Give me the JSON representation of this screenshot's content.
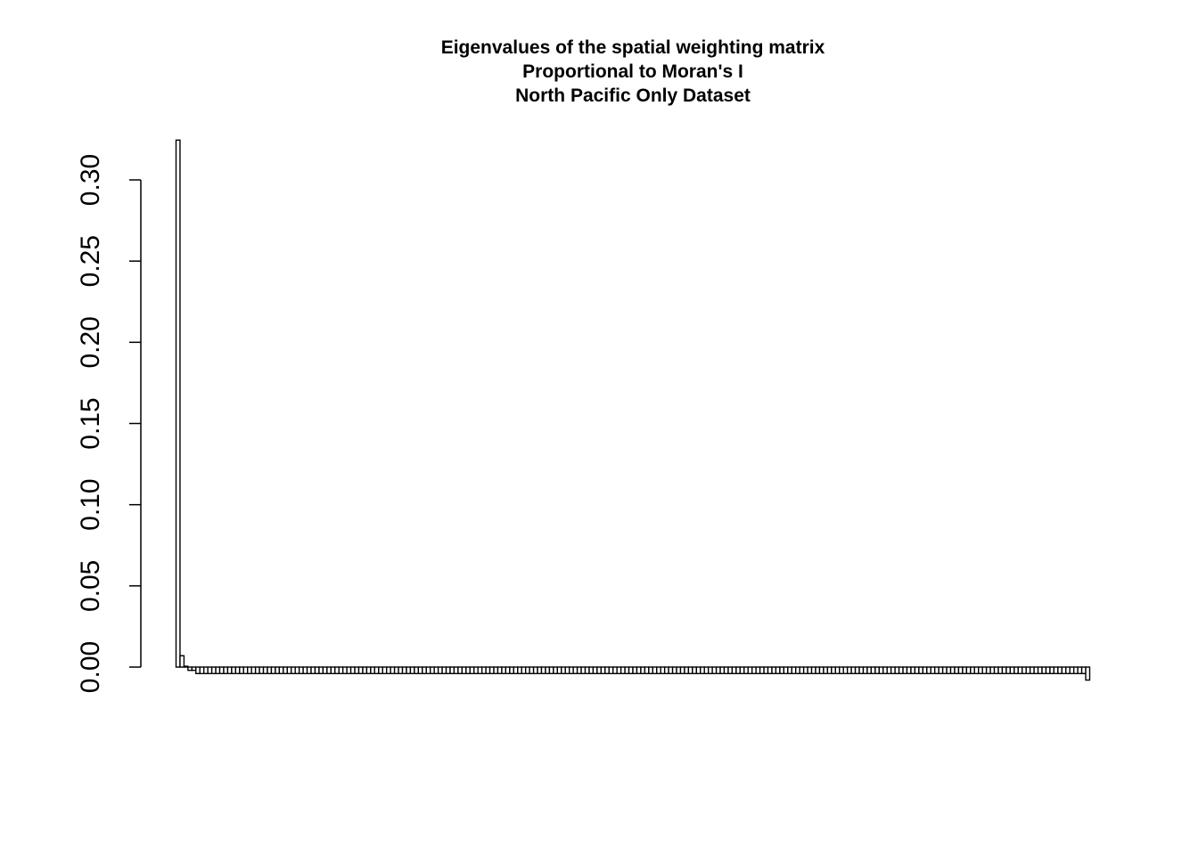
{
  "chart_data": {
    "type": "bar",
    "title": [
      "Eigenvalues of the spatial weighting matrix",
      "Proportional to Moran's I",
      "North Pacific Only Dataset"
    ],
    "xlabel": "",
    "ylabel": "",
    "ylim": [
      0,
      0.3
    ],
    "yticks": [
      0.0,
      0.05,
      0.1,
      0.15,
      0.2,
      0.25,
      0.3
    ],
    "ytick_labels": [
      "0.00",
      "0.05",
      "0.10",
      "0.15",
      "0.20",
      "0.25",
      "0.30"
    ],
    "grid": false,
    "legend": "none",
    "bar_fill": "#ffffff",
    "bar_stroke": "#000000",
    "bar_count": 230,
    "leading_values": [
      0.3245,
      0.007,
      0.0005,
      -0.002,
      -0.002,
      -0.004
    ],
    "tail_value": -0.004,
    "last_value": -0.008
  }
}
